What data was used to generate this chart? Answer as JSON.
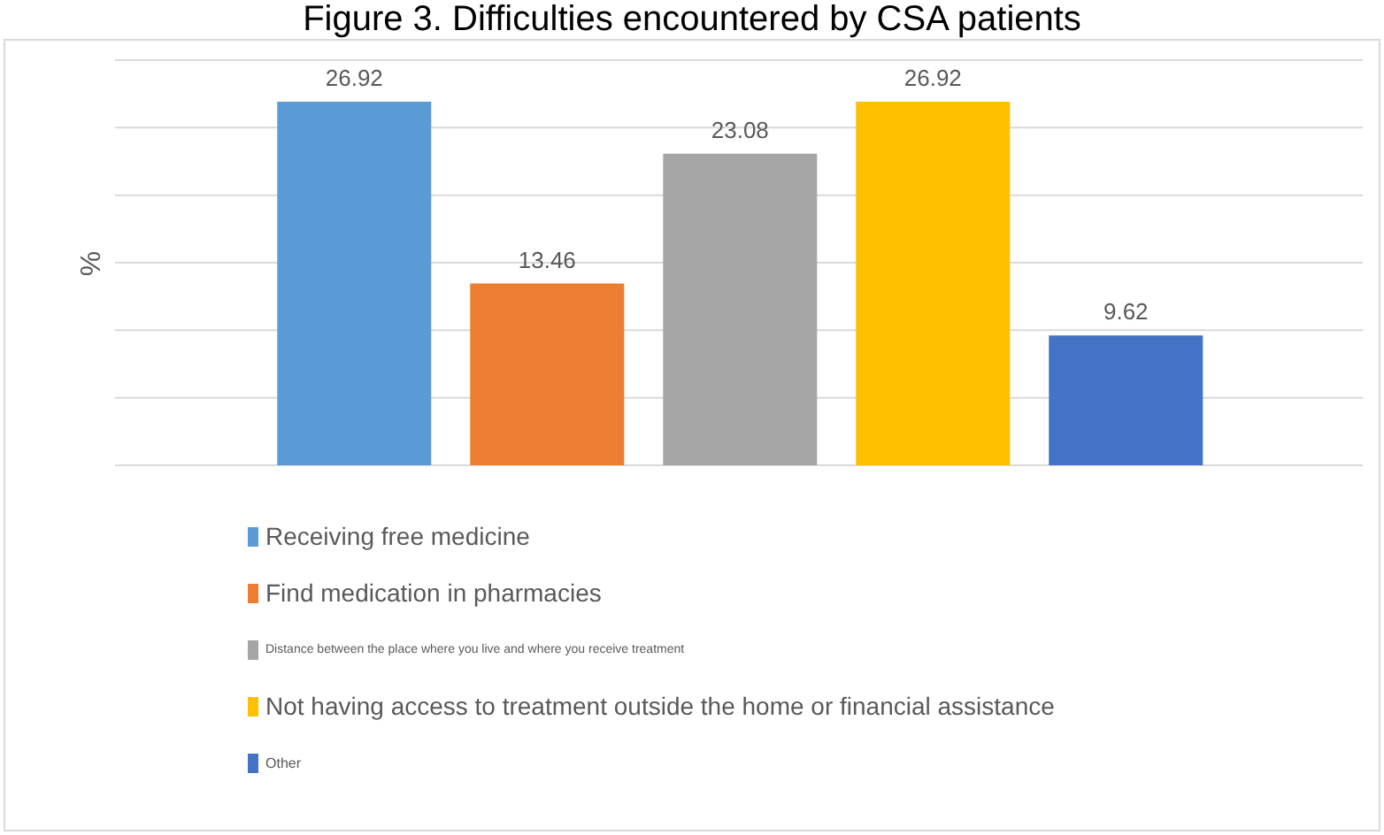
{
  "chart_data": {
    "type": "bar",
    "title": "Figure 3. Difficulties encountered by CSA patients",
    "ylabel": "%",
    "categories": [
      null
    ],
    "series": [
      {
        "name": "Receiving free medicine",
        "color": "#5b9bd5",
        "values": [
          26.92
        ]
      },
      {
        "name": "Find medication in pharmacies",
        "color": "#ed7d31",
        "values": [
          13.46
        ]
      },
      {
        "name": "Distance between the place where you live and where you receive treatment",
        "color": "#a5a5a5",
        "values": [
          23.08
        ]
      },
      {
        "name": "Not having access to treatment outside the home or financial assistance",
        "color": "#ffc000",
        "values": [
          26.92
        ]
      },
      {
        "name": "Other",
        "color": "#4472c4",
        "values": [
          9.62
        ]
      }
    ],
    "ylim": [
      0,
      30
    ],
    "yticks": [
      {
        "value": 0,
        "label": null
      },
      {
        "value": 5,
        "label": null
      },
      {
        "value": 10,
        "label": null
      },
      {
        "value": 15,
        "label": null
      },
      {
        "value": 20,
        "label": null
      },
      {
        "value": 25,
        "label": null
      },
      {
        "value": 30,
        "label": null
      }
    ],
    "tick_labels": false,
    "grid": "y",
    "legend": "bottom",
    "data_labels": true
  }
}
